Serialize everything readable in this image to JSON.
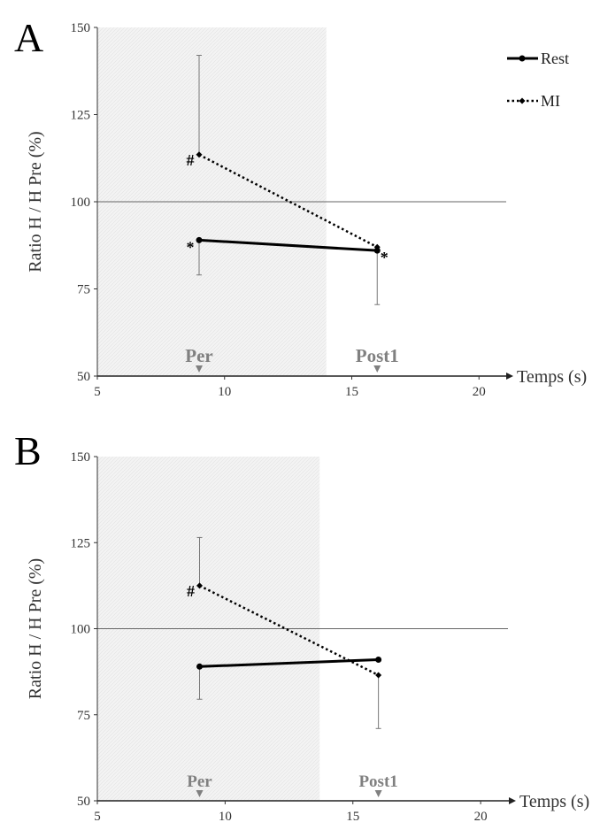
{
  "chart_data": [
    {
      "type": "line",
      "panel_label": "A",
      "ylabel": "Ratio H / H Pre (%)",
      "xlabel": "Temps (s)",
      "xlim": [
        5,
        21
      ],
      "ylim": [
        50,
        150
      ],
      "x_ticks": [
        "5",
        "10",
        "15",
        "20"
      ],
      "y_ticks": [
        "50",
        "75",
        "100",
        "125",
        "150"
      ],
      "reference_line": 100,
      "shaded_region": [
        5,
        14
      ],
      "markers": [
        {
          "label": "Per",
          "x": 9
        },
        {
          "label": "Post1",
          "x": 16
        }
      ],
      "series": [
        {
          "name": "Rest",
          "style": "solid",
          "points": [
            {
              "x": 9,
              "y": 89,
              "err_low": 10,
              "err_high": 0,
              "annot": "*"
            },
            {
              "x": 16,
              "y": 86,
              "err_low": 15.5,
              "err_high": 0,
              "annot": "*"
            }
          ]
        },
        {
          "name": "MI",
          "style": "dotted",
          "points": [
            {
              "x": 9,
              "y": 113.5,
              "err_low": 0,
              "err_high": 28.5,
              "annot": "#"
            },
            {
              "x": 16,
              "y": 87,
              "err_low": 0,
              "err_high": 0,
              "annot": ""
            }
          ]
        }
      ],
      "legend": {
        "position": "top-right",
        "entries": [
          "Rest",
          "MI"
        ]
      }
    },
    {
      "type": "line",
      "panel_label": "B",
      "ylabel": "Ratio H / H Pre (%)",
      "xlabel": "Temps (s)",
      "xlim": [
        5,
        21
      ],
      "ylim": [
        50,
        150
      ],
      "x_ticks": [
        "5",
        "10",
        "15",
        "20"
      ],
      "y_ticks": [
        "50",
        "75",
        "100",
        "125",
        "150"
      ],
      "reference_line": 100,
      "shaded_region": [
        5,
        13.7
      ],
      "markers": [
        {
          "label": "Per",
          "x": 9
        },
        {
          "label": "Post1",
          "x": 16
        }
      ],
      "series": [
        {
          "name": "Rest",
          "style": "solid",
          "points": [
            {
              "x": 9,
              "y": 89,
              "err_low": 9.5,
              "err_high": 0,
              "annot": ""
            },
            {
              "x": 16,
              "y": 91,
              "err_low": 0,
              "err_high": 0,
              "annot": ""
            }
          ]
        },
        {
          "name": "MI",
          "style": "dotted",
          "points": [
            {
              "x": 9,
              "y": 112.5,
              "err_low": 0,
              "err_high": 14,
              "annot": "#"
            },
            {
              "x": 16,
              "y": 86.5,
              "err_low": 15.5,
              "err_high": 0,
              "annot": ""
            }
          ]
        }
      ],
      "legend": null
    }
  ],
  "colors": {
    "rest": "#000000",
    "mi": "#000000",
    "shade": "#f2f2f2",
    "marker_label": "#808080",
    "refline": "#666666"
  }
}
